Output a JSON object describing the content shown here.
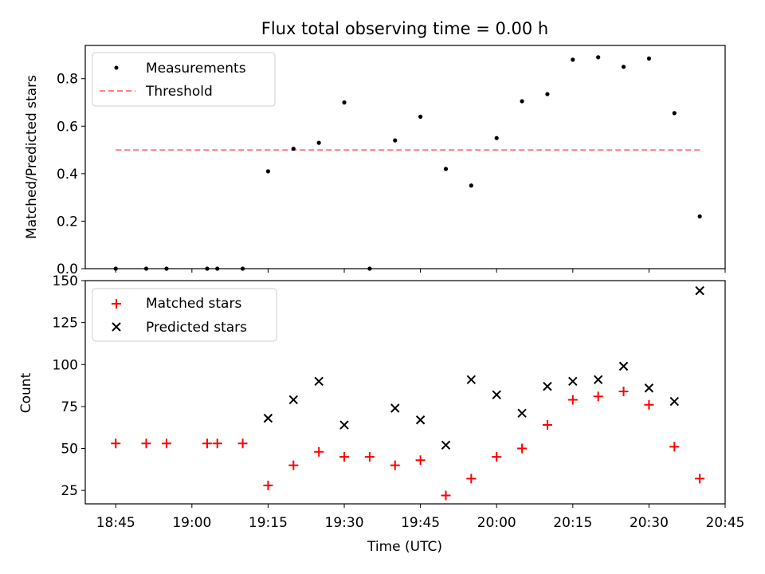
{
  "colors": {
    "measurement": "#000000",
    "threshold": "#ff8080",
    "matched": "#ff0000",
    "predicted": "#000000"
  },
  "chart_data": [
    {
      "type": "scatter",
      "title": "Flux total observing time = 0.00 h",
      "xlabel": "",
      "ylabel": "Matched/Predicted stars",
      "ylim": [
        0,
        0.94
      ],
      "yticks": [
        "0.0",
        "0.2",
        "0.4",
        "0.6",
        "0.8"
      ],
      "legend_position": "top-left",
      "series": [
        {
          "name": "Measurements",
          "marker": "dot",
          "x": [
            "18:45",
            "18:51",
            "18:55",
            "19:03",
            "19:05",
            "19:10",
            "19:15",
            "19:20",
            "19:25",
            "19:30",
            "19:35",
            "19:40",
            "19:45",
            "19:50",
            "19:55",
            "20:00",
            "20:05",
            "20:10",
            "20:15",
            "20:20",
            "20:25",
            "20:30",
            "20:35",
            "20:40"
          ],
          "y": [
            0.0,
            0.0,
            0.0,
            0.0,
            0.0,
            0.0,
            0.41,
            0.505,
            0.53,
            0.7,
            0.0,
            0.54,
            0.64,
            0.42,
            0.35,
            0.55,
            0.705,
            0.735,
            0.88,
            0.89,
            0.85,
            0.885,
            0.655,
            0.22
          ]
        },
        {
          "name": "Threshold",
          "line": "dashed",
          "x": [
            "18:45",
            "20:40"
          ],
          "y": [
            0.5,
            0.5
          ]
        }
      ]
    },
    {
      "type": "scatter",
      "title": "",
      "xlabel": "Time (UTC)",
      "ylabel": "Count",
      "ylim": [
        17,
        150
      ],
      "yticks": [
        "25",
        "50",
        "75",
        "100",
        "125",
        "150"
      ],
      "xlim": [
        "18:39",
        "20:45"
      ],
      "xticks": [
        "18:45",
        "19:00",
        "19:15",
        "19:30",
        "19:45",
        "20:00",
        "20:15",
        "20:30",
        "20:45"
      ],
      "legend_position": "top-left",
      "series": [
        {
          "name": "Matched stars",
          "marker": "plus",
          "x": [
            "18:45",
            "18:51",
            "18:55",
            "19:03",
            "19:05",
            "19:10",
            "19:15",
            "19:20",
            "19:25",
            "19:30",
            "19:35",
            "19:40",
            "19:45",
            "19:50",
            "19:55",
            "20:00",
            "20:05",
            "20:10",
            "20:15",
            "20:20",
            "20:25",
            "20:30",
            "20:35",
            "20:40"
          ],
          "y": [
            53,
            53,
            53,
            53,
            53,
            53,
            28,
            40,
            48,
            45,
            45,
            40,
            43,
            22,
            32,
            45,
            50,
            64,
            79,
            81,
            84,
            76,
            51,
            32
          ]
        },
        {
          "name": "Predicted stars",
          "marker": "cross",
          "x": [
            "19:15",
            "19:20",
            "19:25",
            "19:30",
            "19:40",
            "19:45",
            "19:50",
            "19:55",
            "20:00",
            "20:05",
            "20:10",
            "20:15",
            "20:20",
            "20:25",
            "20:30",
            "20:35",
            "20:40"
          ],
          "y": [
            68,
            79,
            90,
            64,
            74,
            67,
            52,
            91,
            82,
            71,
            87,
            90,
            91,
            99,
            86,
            78,
            144
          ]
        }
      ]
    }
  ]
}
